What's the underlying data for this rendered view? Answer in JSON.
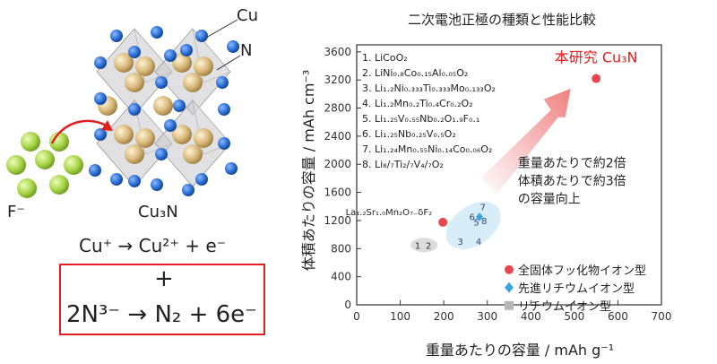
{
  "structure": {
    "label_cu": "Cu",
    "label_n": "N",
    "label_f": "F⁻",
    "label_cu3n": "Cu₃N"
  },
  "reactions": {
    "eq1": "Cu⁺ → Cu²⁺ + e⁻",
    "plus": "+",
    "eq2": "2N³⁻ → N₂ + 6e⁻"
  },
  "colors": {
    "this_work": "#e8474f",
    "advanced_li": "#3aa7e0",
    "li_ion": "#b8b8b8",
    "arrow": "#f08080",
    "fluoride": "#a8d44a",
    "copper": "#d8b878",
    "nitrogen": "#2a6fd6",
    "box": "#e02020"
  },
  "chart_data": {
    "type": "scatter",
    "title": "二次電池正極の種類と性能比較",
    "xlabel": "重量あたりの容量 / mAh g⁻¹",
    "ylabel": "体積あたりの容量 / mAh cm⁻³",
    "xlim": [
      0,
      700
    ],
    "ylim": [
      0,
      3700
    ],
    "xticks": [
      0,
      100,
      200,
      300,
      400,
      500,
      600,
      700
    ],
    "yticks": [
      0,
      400,
      800,
      1200,
      1600,
      2000,
      2400,
      2800,
      3200,
      3600
    ],
    "material_list": [
      "1. LiCoO₂",
      "2. LiNi₀.₈Co₀.₁₅Al₀.₀₅O₂",
      "3. Li₁.₂Ni₀.₃₃₃Ti₀.₃₃₃Mo₀.₁₃₃O₂",
      "4. Li₁.₂Mn₀.₂Ti₀.₄Cr₀.₂O₂",
      "5. Li₁.₂₅V₀.₅₅Nb₀.₂O₁.₉F₀.₁",
      "6. Li₁.₂₅Nb₀.₂₅V₀.₅O₂",
      "7. Li₁.₂₄Mn₀.₅₅Ni₀.₁₄Co₀.₀₆O₂",
      "8. Li₈/₇Ti₂/₇V₄/₇O₂"
    ],
    "points_li_ion": [
      {
        "label": "1",
        "x": 140,
        "y": 850
      },
      {
        "label": "2",
        "x": 165,
        "y": 850
      }
    ],
    "points_advanced": [
      {
        "label": "3",
        "x": 238,
        "y": 905
      },
      {
        "label": "4",
        "x": 280,
        "y": 905
      },
      {
        "label": "5",
        "x": 275,
        "y": 1180
      },
      {
        "label": "6",
        "x": 265,
        "y": 1255
      },
      {
        "label": "7",
        "x": 290,
        "y": 1400
      },
      {
        "label": "8",
        "x": 293,
        "y": 1200
      }
    ],
    "points_fluoride": [
      {
        "label": "La₁.₂Sr₁.₀Mn₂O₇₋δF₂",
        "x": 198,
        "y": 1175
      },
      {
        "label": "本研究 Cu₃N",
        "x": 550,
        "y": 3220
      }
    ],
    "annotation": [
      "重量あたりで約2倍",
      "体積あたりで約3倍",
      "の容量向上"
    ],
    "legend": [
      {
        "name": "全固体フッ化物イオン型",
        "marker": "circle"
      },
      {
        "name": "先進リチウムイオン型",
        "marker": "diamond"
      },
      {
        "name": "リチウムイオン型",
        "marker": "square"
      }
    ],
    "legend_position": "bottom-right"
  }
}
